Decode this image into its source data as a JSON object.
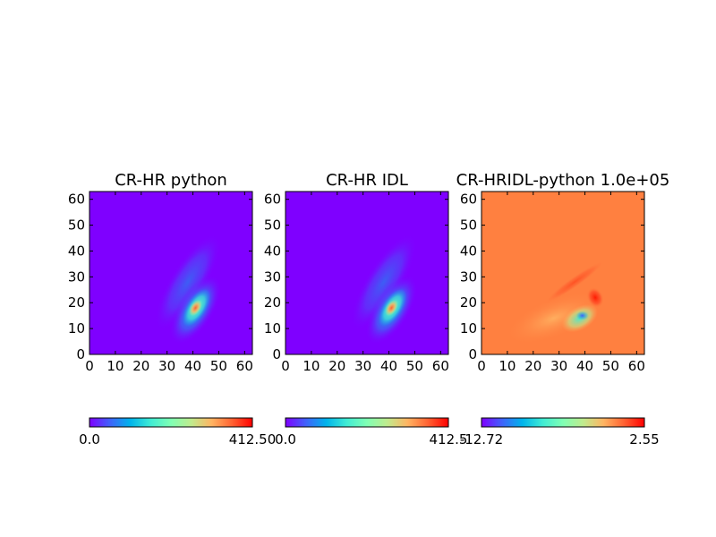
{
  "figure": {
    "background": "#ffffff"
  },
  "chart_data": [
    {
      "type": "heatmap",
      "title": "CR-HR python",
      "xlabel": "",
      "ylabel": "",
      "xlim": [
        0,
        63
      ],
      "ylim": [
        0,
        63
      ],
      "x_ticks": [
        0,
        10,
        20,
        30,
        40,
        50,
        60
      ],
      "y_ticks": [
        0,
        10,
        20,
        30,
        40,
        50,
        60
      ],
      "grid": false,
      "colormap": "rainbow",
      "background_color": "#7f00ff",
      "value_range": [
        0.0,
        412.5
      ],
      "colorbar": {
        "orientation": "horizontal",
        "min_label": "0.0",
        "max_label": "412.50"
      },
      "hotspot": {
        "x": 41,
        "y": 18,
        "peak": 412.5
      }
    },
    {
      "type": "heatmap",
      "title": "CR-HR IDL",
      "xlabel": "",
      "ylabel": "",
      "xlim": [
        0,
        63
      ],
      "ylim": [
        0,
        63
      ],
      "x_ticks": [
        0,
        10,
        20,
        30,
        40,
        50,
        60
      ],
      "y_ticks": [
        0,
        10,
        20,
        30,
        40,
        50,
        60
      ],
      "grid": false,
      "colormap": "rainbow",
      "background_color": "#7f00ff",
      "value_range": [
        0.0,
        412.5
      ],
      "colorbar": {
        "orientation": "horizontal",
        "min_label": "0.0",
        "max_label": "412.5"
      },
      "hotspot": {
        "x": 41,
        "y": 18,
        "peak": 412.5
      }
    },
    {
      "type": "heatmap",
      "title": "CR-HRIDL-python 1.0e+05",
      "xlabel": "",
      "ylabel": "",
      "xlim": [
        0,
        63
      ],
      "ylim": [
        0,
        63
      ],
      "x_ticks": [
        0,
        10,
        20,
        30,
        40,
        50,
        60
      ],
      "y_ticks": [
        0,
        10,
        20,
        30,
        40,
        50,
        60
      ],
      "grid": false,
      "colormap": "rainbow",
      "background_color": "#ff8040",
      "value_range": [
        -12.72,
        2.55
      ],
      "colorbar": {
        "orientation": "horizontal",
        "min_label": "-12.72",
        "max_label": "2.55"
      },
      "hotspot": {
        "x": 44,
        "y": 22,
        "peak": 2.55
      }
    }
  ]
}
